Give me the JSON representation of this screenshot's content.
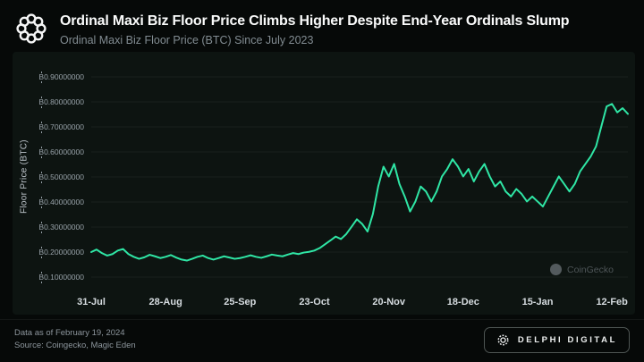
{
  "header": {
    "title": "Ordinal Maxi Biz Floor Price Climbs Higher Despite End-Year Ordinals Slump",
    "subtitle": "Ordinal Maxi Biz Floor Price (BTC) Since July 2023"
  },
  "watermark": {
    "label": "CoinGecko"
  },
  "footer": {
    "data_as_of": "Data as of February 19, 2024",
    "source": "Source: Coingecko, Magic Eden",
    "brand": "DELPHI DIGITAL"
  },
  "colors": {
    "background": "#060908",
    "panel": "#0d1411",
    "line": "#2fe6a5",
    "tick_text": "#97a1a8"
  },
  "chart_data": {
    "type": "line",
    "title": "Ordinal Maxi Biz Floor Price Climbs Higher Despite End-Year Ordinals Slump",
    "subtitle": "Ordinal Maxi Biz Floor Price (BTC) Since July 2023",
    "xlabel": "",
    "ylabel": "Floor Price (BTC)",
    "ylim": [
      0.05,
      0.95
    ],
    "grid": "faint-horizontal",
    "legend": "none",
    "line_color": "#2fe6a5",
    "y_ticks": [
      {
        "value": 0.1,
        "label": "₿0.10000000"
      },
      {
        "value": 0.2,
        "label": "₿0.20000000"
      },
      {
        "value": 0.3,
        "label": "₿0.30000000"
      },
      {
        "value": 0.4,
        "label": "₿0.40000000"
      },
      {
        "value": 0.5,
        "label": "₿0.50000000"
      },
      {
        "value": 0.6,
        "label": "₿0.60000000"
      },
      {
        "value": 0.7,
        "label": "₿0.70000000"
      },
      {
        "value": 0.8,
        "label": "₿0.80000000"
      },
      {
        "value": 0.9,
        "label": "₿0.90000000"
      }
    ],
    "x_tick_labels": [
      "31-Jul",
      "28-Aug",
      "25-Sep",
      "23-Oct",
      "20-Nov",
      "18-Dec",
      "15-Jan",
      "12-Feb"
    ],
    "x_tick_indices": [
      0,
      14,
      28,
      42,
      56,
      70,
      84,
      98
    ],
    "x_range_note": "31-Jul-2023 through 19-Feb-2024",
    "series": [
      {
        "name": "Ordinal Maxi Biz Floor Price (BTC)",
        "values": [
          0.2,
          0.21,
          0.196,
          0.186,
          0.192,
          0.206,
          0.212,
          0.192,
          0.181,
          0.173,
          0.179,
          0.189,
          0.183,
          0.176,
          0.181,
          0.188,
          0.178,
          0.17,
          0.166,
          0.173,
          0.181,
          0.186,
          0.176,
          0.17,
          0.176,
          0.183,
          0.178,
          0.173,
          0.176,
          0.181,
          0.187,
          0.181,
          0.177,
          0.183,
          0.19,
          0.186,
          0.183,
          0.19,
          0.196,
          0.192,
          0.198,
          0.201,
          0.206,
          0.216,
          0.231,
          0.246,
          0.262,
          0.252,
          0.272,
          0.301,
          0.331,
          0.312,
          0.282,
          0.352,
          0.462,
          0.541,
          0.502,
          0.552,
          0.472,
          0.422,
          0.362,
          0.402,
          0.462,
          0.442,
          0.402,
          0.442,
          0.502,
          0.532,
          0.571,
          0.542,
          0.502,
          0.532,
          0.482,
          0.522,
          0.552,
          0.502,
          0.462,
          0.482,
          0.442,
          0.422,
          0.452,
          0.432,
          0.402,
          0.422,
          0.402,
          0.382,
          0.422,
          0.462,
          0.502,
          0.472,
          0.442,
          0.472,
          0.522,
          0.552,
          0.582,
          0.622,
          0.702,
          0.782,
          0.792,
          0.758,
          0.775,
          0.752
        ]
      }
    ]
  }
}
